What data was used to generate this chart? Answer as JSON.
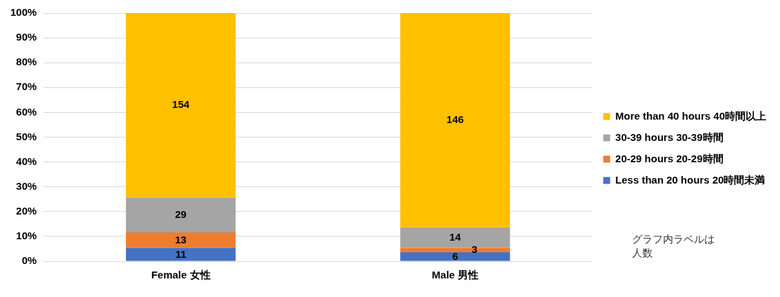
{
  "chart_data": {
    "type": "bar",
    "stacked": true,
    "categories": [
      "Female 女性",
      "Male 男性"
    ],
    "series": [
      {
        "name": "Less than 20 hours 20時間未満",
        "color": "#4472c4",
        "values": [
          5.3,
          3.6
        ]
      },
      {
        "name": "20-29 hours 20-29時間",
        "color": "#ed7d31",
        "values": [
          6.3,
          1.8
        ]
      },
      {
        "name": "30-39 hours 30-39時間",
        "color": "#a5a5a5",
        "values": [
          14.0,
          8.3
        ]
      },
      {
        "name": "More than 40 hours 40時間以上",
        "color": "#ffc000",
        "values": [
          74.4,
          86.3
        ]
      }
    ],
    "ylim": [
      0,
      100
    ],
    "yticks": [
      {
        "value": 0,
        "label": "0%"
      },
      {
        "value": 10,
        "label": "10%"
      },
      {
        "value": 20,
        "label": "20%"
      },
      {
        "value": 30,
        "label": "30%"
      },
      {
        "value": 40,
        "label": "40%"
      },
      {
        "value": 50,
        "label": "50%"
      },
      {
        "value": 60,
        "label": "60%"
      },
      {
        "value": 70,
        "label": "70%"
      },
      {
        "value": 80,
        "label": "80%"
      },
      {
        "value": 90,
        "label": "90%"
      },
      {
        "value": 100,
        "label": "100%"
      }
    ],
    "grid": "y",
    "legend": "right",
    "annotations": [
      {
        "text": "11",
        "x": "Female 女性",
        "y": 5.3
      },
      {
        "text": "13",
        "x": "Female 女性",
        "y": 11.6
      },
      {
        "text": "29",
        "x": "Female 女性",
        "y": 25.6
      },
      {
        "text": "6",
        "x": "Male 男性",
        "y": 3.6
      },
      {
        "text": "3",
        "x": "Male 男性",
        "y": 5.4
      },
      {
        "text": "14",
        "x": "Male 男性",
        "y": 13.7
      },
      "154",
      "146",
      "グラフ内ラベルは人数"
    ]
  }
}
